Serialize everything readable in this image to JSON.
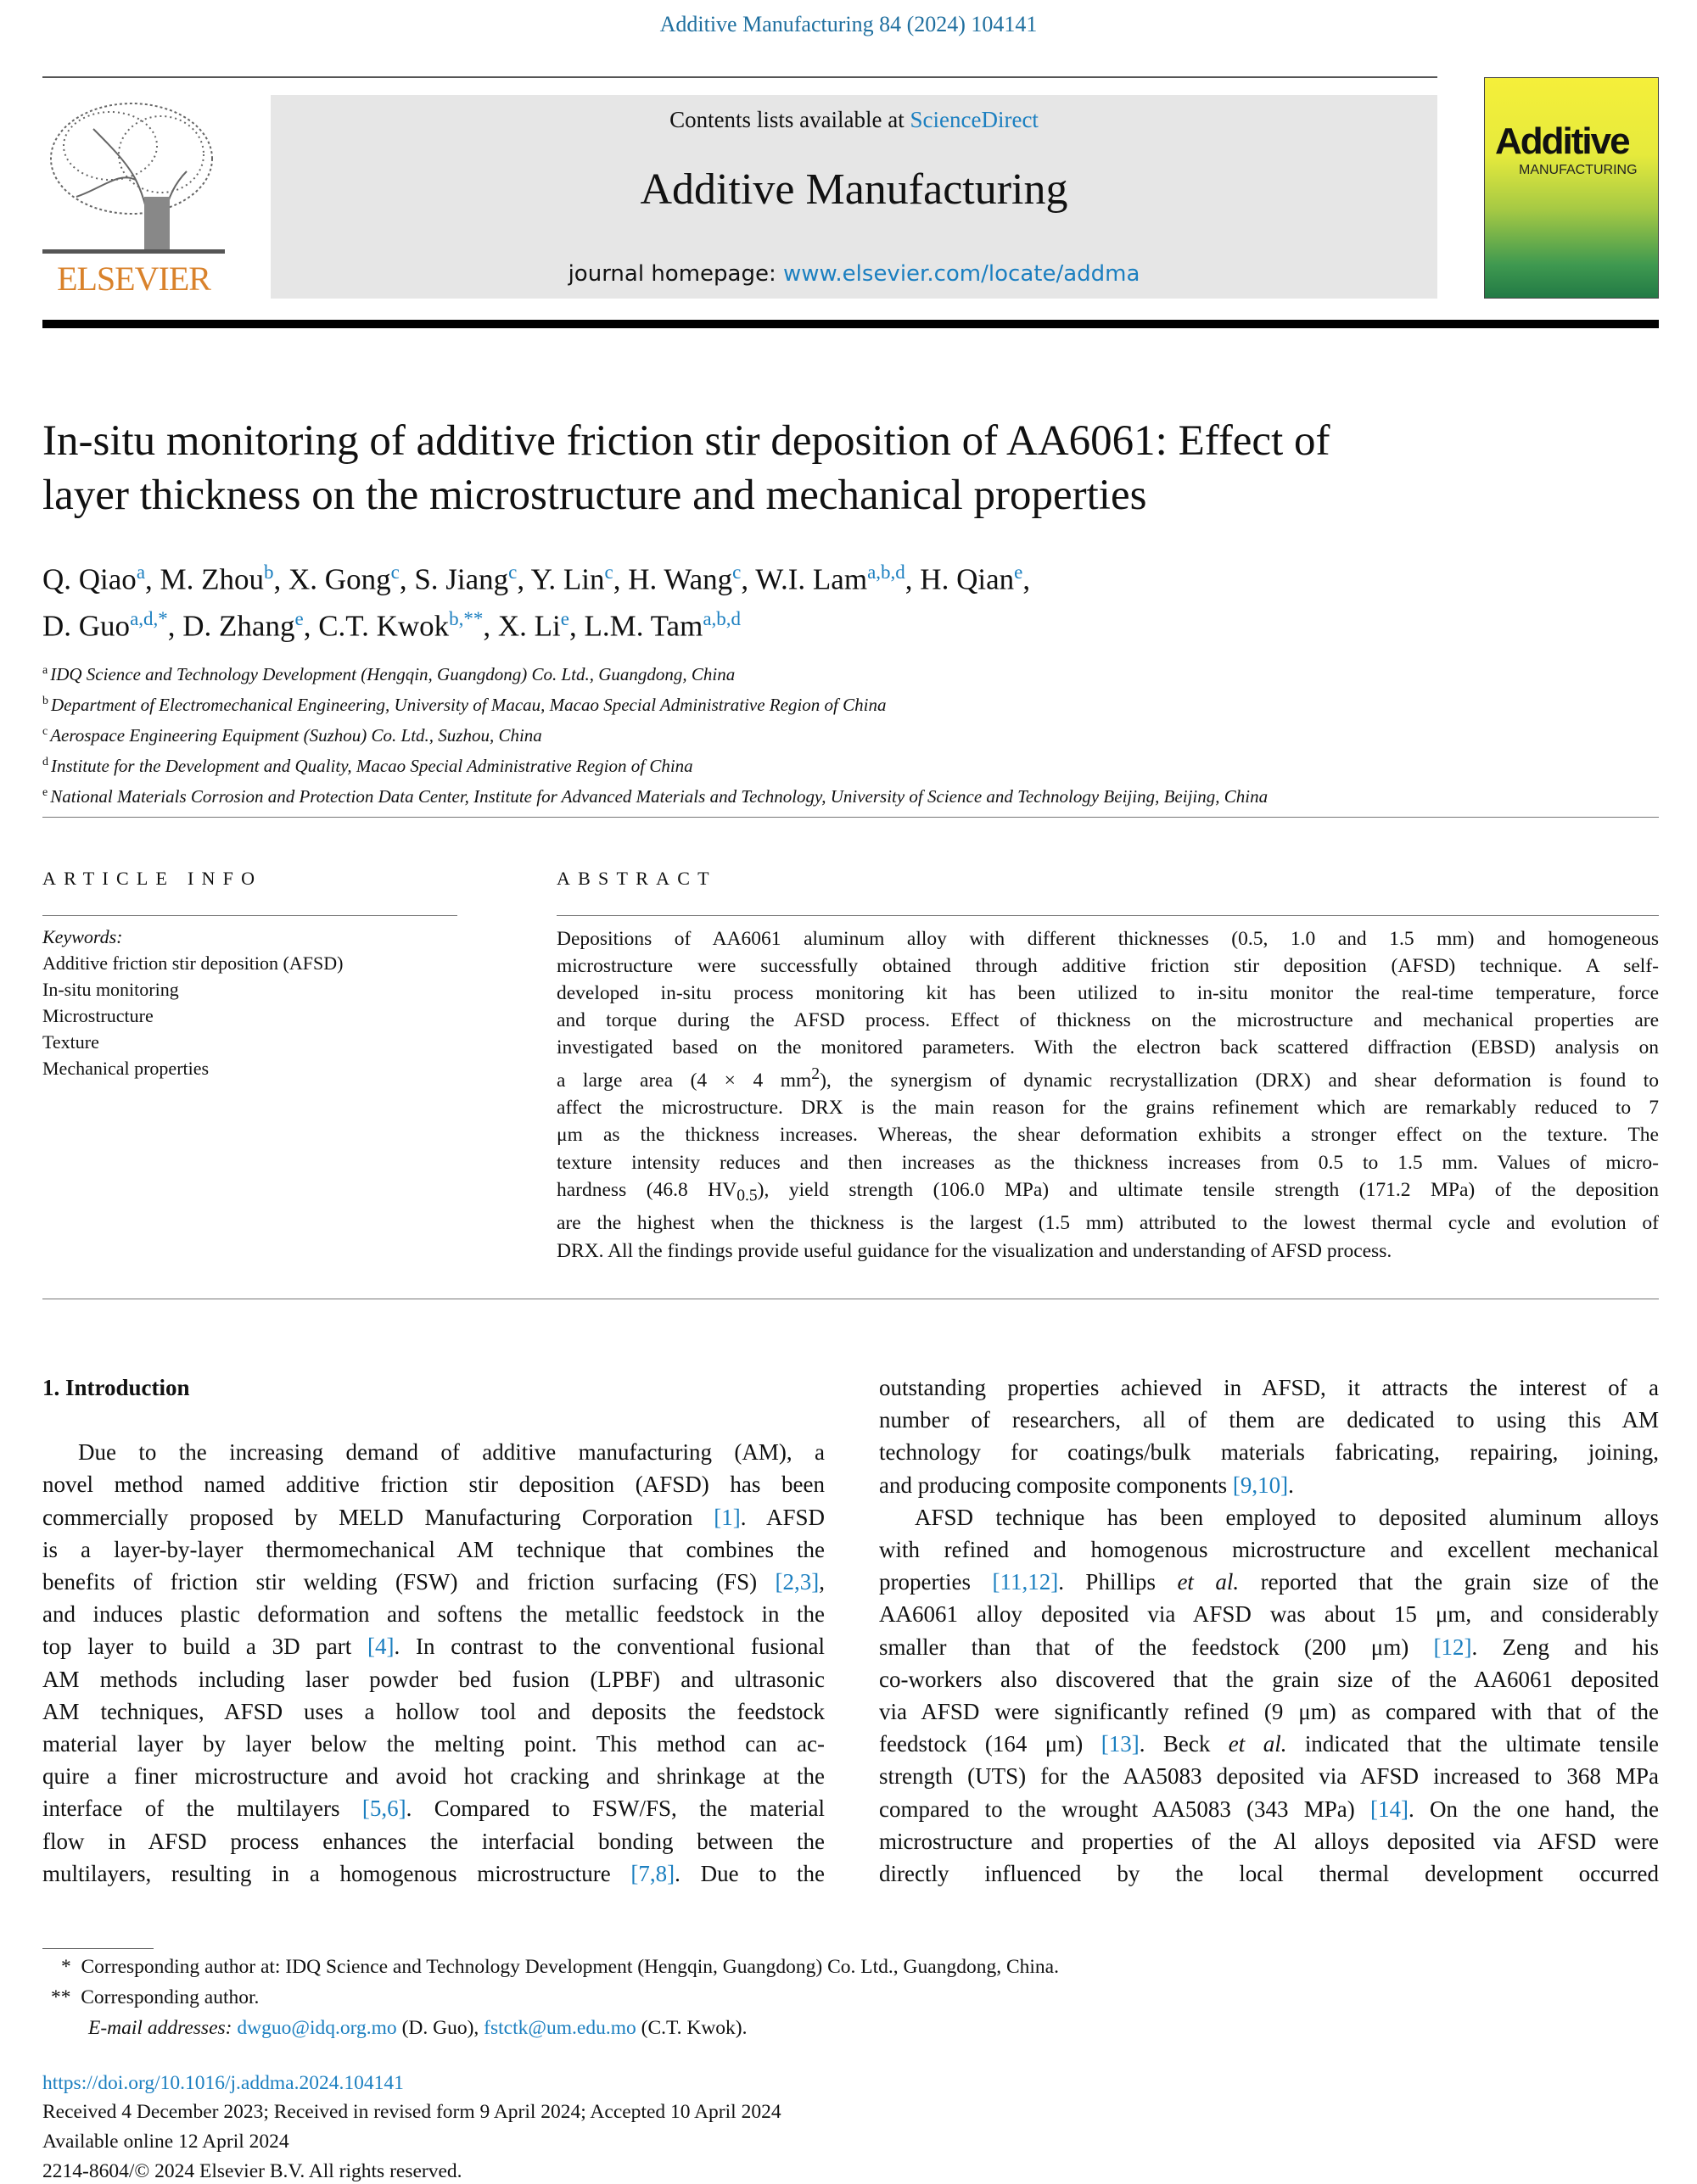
{
  "header": {
    "journal_ref": "Additive Manufacturing 84 (2024) 104141",
    "contents_prefix": "Contents lists available at ",
    "contents_link": "ScienceDirect",
    "journal_title": "Additive Manufacturing",
    "homepage_prefix": "journal homepage: ",
    "homepage_link": "www.elsevier.com/locate/addma",
    "publisher_logo": "ELSEVIER",
    "cover_title": "Additive",
    "cover_subtitle": "MANUFACTURING"
  },
  "colors": {
    "link": "#1b7fc0",
    "journal_ref": "#1f6f9f",
    "elsevier_orange": "#d9822b",
    "header_box": "#e6e6e6"
  },
  "article": {
    "title_lines": [
      "In-situ monitoring of additive friction stir deposition of AA6061: Effect of",
      "layer thickness on the microstructure and mechanical properties"
    ],
    "author_lines": [
      [
        {
          "name": "Q. Qiao",
          "sup": "a"
        },
        {
          "name": "M. Zhou",
          "sup": "b"
        },
        {
          "name": "X. Gong",
          "sup": "c"
        },
        {
          "name": "S. Jiang",
          "sup": "c"
        },
        {
          "name": "Y. Lin",
          "sup": "c"
        },
        {
          "name": "H. Wang",
          "sup": "c"
        },
        {
          "name": "W.I. Lam",
          "sup": "a,b,d"
        },
        {
          "name": "H. Qian",
          "sup": "e"
        }
      ],
      [
        {
          "name": "D. Guo",
          "sup": "a,d,*"
        },
        {
          "name": "D. Zhang",
          "sup": "e"
        },
        {
          "name": "C.T. Kwok",
          "sup": "b,**"
        },
        {
          "name": "X. Li",
          "sup": "e"
        },
        {
          "name": "L.M. Tam",
          "sup": "a,b,d"
        }
      ]
    ],
    "affiliations": [
      {
        "key": "a",
        "text": "IDQ Science and Technology Development (Hengqin, Guangdong) Co. Ltd., Guangdong, China"
      },
      {
        "key": "b",
        "text": "Department of Electromechanical Engineering, University of Macau, Macao Special Administrative Region of China"
      },
      {
        "key": "c",
        "text": "Aerospace Engineering Equipment (Suzhou) Co. Ltd., Suzhou, China"
      },
      {
        "key": "d",
        "text": "Institute for the Development and Quality, Macao Special Administrative Region of China"
      },
      {
        "key": "e",
        "text": "National Materials Corrosion and Protection Data Center, Institute for Advanced Materials and Technology, University of Science and Technology Beijing, Beijing, China"
      }
    ]
  },
  "article_info": {
    "heading": "ARTICLE INFO",
    "keywords_label": "Keywords:",
    "keywords": [
      "Additive friction stir deposition (AFSD)",
      "In-situ monitoring",
      "Microstructure",
      "Texture",
      "Mechanical properties"
    ]
  },
  "abstract": {
    "heading": "ABSTRACT",
    "lines": [
      [
        "Depositions of AA6061 aluminum alloy with different thicknesses (0.5, 1.0 and 1.5 mm) and homogeneous"
      ],
      [
        "microstructure were successfully obtained through additive friction stir deposition (AFSD) technique. A self-"
      ],
      [
        "developed in-situ process monitoring kit has been utilized to in-situ monitor the real-time temperature, force"
      ],
      [
        "and torque during the AFSD process. Effect of thickness on the microstructure and mechanical properties are"
      ],
      [
        "investigated based on the monitored parameters. With the electron back scattered diffraction (EBSD) analysis on"
      ],
      [
        "a large area (4 × 4 mm",
        {
          "sup": "2"
        },
        "), the synergism of dynamic recrystallization (DRX) and shear deformation is found to"
      ],
      [
        "affect the microstructure. DRX is the main reason for the grains refinement which are remarkably reduced to 7"
      ],
      [
        "μm as the thickness increases. Whereas, the shear deformation exhibits a stronger effect on the texture. The"
      ],
      [
        "texture intensity reduces and then increases as the thickness increases from 0.5 to 1.5 mm. Values of micro-"
      ],
      [
        "hardness (46.8 HV",
        {
          "sub": "0.5"
        },
        "), yield strength (106.0 MPa) and ultimate tensile strength (171.2 MPa) of the deposition"
      ],
      [
        "are the highest when the thickness is the largest (1.5 mm) attributed to the lowest thermal cycle and evolution of"
      ],
      [
        "DRX. All the findings provide useful guidance for the visualization and understanding of AFSD process."
      ]
    ]
  },
  "intro": {
    "heading": "1.  Introduction",
    "left_lines": [
      [
        "Due to the increasing demand of additive manufacturing (AM), a"
      ],
      [
        "novel method named additive friction stir deposition (AFSD) has been"
      ],
      [
        "commercially proposed by MELD Manufacturing Corporation ",
        {
          "ref": "[1]"
        },
        ". AFSD"
      ],
      [
        "is a layer-by-layer thermomechanical AM technique that combines the"
      ],
      [
        "benefits of friction stir welding (FSW) and friction surfacing (FS) ",
        {
          "ref": "[2,3]"
        },
        ","
      ],
      [
        "and induces plastic deformation and softens the metallic feedstock in the"
      ],
      [
        "top layer to build a 3D part ",
        {
          "ref": "[4]"
        },
        ". In contrast to the conventional fusional"
      ],
      [
        "AM methods including laser powder bed fusion (LPBF) and ultrasonic"
      ],
      [
        "AM techniques, AFSD uses a hollow tool and deposits the feedstock"
      ],
      [
        "material layer by layer below the melting point. This method can ac-"
      ],
      [
        "quire a finer microstructure and avoid hot cracking and shrinkage at the"
      ],
      [
        "interface of the multilayers ",
        {
          "ref": "[5,6]"
        },
        ". Compared to FSW/FS, the material"
      ],
      [
        "flow in AFSD process enhances the interfacial bonding between the"
      ],
      [
        "multilayers, resulting in a homogenous microstructure ",
        {
          "ref": "[7,8]"
        },
        ". Due to the"
      ]
    ],
    "right_lines": [
      [
        "outstanding properties achieved in AFSD, it attracts the interest of a"
      ],
      [
        "number of researchers, all of them are dedicated to using this AM"
      ],
      [
        "technology for coatings/bulk materials fabricating, repairing, joining,"
      ],
      [
        "and producing composite components ",
        {
          "ref": "[9,10]"
        },
        "."
      ],
      [
        "AFSD technique has been employed to deposited aluminum alloys"
      ],
      [
        "with refined and homogenous microstructure and excellent mechanical"
      ],
      [
        "properties ",
        {
          "ref": "[11,12]"
        },
        ". Phillips ",
        {
          "i": "et al."
        },
        " reported that the grain size of the"
      ],
      [
        "AA6061 alloy deposited via AFSD was about 15 μm, and considerably"
      ],
      [
        "smaller than that of the feedstock (200 μm) ",
        {
          "ref": "[12]"
        },
        ". Zeng and his"
      ],
      [
        "co-workers also discovered that the grain size of the AA6061 deposited"
      ],
      [
        "via AFSD were significantly refined (9 μm) as compared with that of the"
      ],
      [
        "feedstock (164 μm) ",
        {
          "ref": "[13]"
        },
        ". Beck ",
        {
          "i": "et al."
        },
        " indicated that the ultimate tensile"
      ],
      [
        "strength (UTS) for the AA5083 deposited via AFSD increased to 368 MPa"
      ],
      [
        "compared to the wrought AA5083 (343 MPa) ",
        {
          "ref": "[14]"
        },
        ". On the one hand, the"
      ],
      [
        "microstructure and properties of the Al alloys deposited via AFSD were"
      ],
      [
        "directly influenced by the local thermal development occurred"
      ]
    ]
  },
  "footnotes": {
    "star1_mark": "*",
    "star1_text": "Corresponding author at: IDQ Science and Technology Development (Hengqin, Guangdong) Co. Ltd., Guangdong, China.",
    "star2_mark": "**",
    "star2_text": "Corresponding author.",
    "email_label": "E-mail addresses:",
    "email1": "dwguo@idq.org.mo",
    "email1_name": " (D. Guo), ",
    "email2": "fstctk@um.edu.mo",
    "email2_name": " (C.T. Kwok)."
  },
  "meta": {
    "doi": "https://doi.org/10.1016/j.addma.2024.104141",
    "received": "Received 4 December 2023; Received in revised form 9 April 2024; Accepted 10 April 2024",
    "available": "Available online 12 April 2024",
    "copyright": "2214-8604/© 2024 Elsevier B.V. All rights reserved."
  }
}
